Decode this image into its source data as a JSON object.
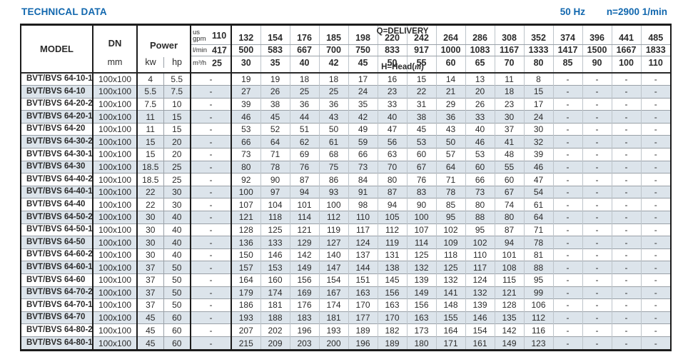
{
  "page": {
    "title": "TECHNICAL DATA",
    "frequency": "50 Hz",
    "speed": "n=2900 1/min"
  },
  "colors": {
    "accent": "#1167ae",
    "row_stripe": "#dce4eb"
  },
  "table": {
    "delivery_label": "Q=DELIVERY",
    "head_label": {
      "prefix": "H=Head(",
      "unit": "m",
      "suffix": ")"
    },
    "headers": {
      "model": "MODEL",
      "dn": "DN",
      "dn_unit": "mm",
      "power": "Power",
      "kw": "kw",
      "hp": "hp"
    },
    "unit_rows": [
      {
        "unit": "us gpm",
        "values": [
          "110",
          "132",
          "154",
          "176",
          "185",
          "198",
          "220",
          "242",
          "264",
          "286",
          "308",
          "352",
          "374",
          "396",
          "441",
          "485"
        ]
      },
      {
        "unit": "l/min",
        "values": [
          "417",
          "500",
          "583",
          "667",
          "700",
          "750",
          "833",
          "917",
          "1000",
          "1083",
          "1167",
          "1333",
          "1417",
          "1500",
          "1667",
          "1833"
        ]
      },
      {
        "unit": "m³/h",
        "values": [
          "25",
          "30",
          "35",
          "40",
          "42",
          "45",
          "50",
          "55",
          "60",
          "65",
          "70",
          "80",
          "85",
          "90",
          "100",
          "110"
        ]
      }
    ],
    "rows": [
      {
        "model": "BVT/BVS 64-10-1",
        "dn": "100x100",
        "kw": "4",
        "hp": "5.5",
        "head": [
          "-",
          "19",
          "19",
          "18",
          "18",
          "17",
          "16",
          "15",
          "14",
          "13",
          "11",
          "8",
          "-",
          "-",
          "-",
          "-"
        ]
      },
      {
        "model": "BVT/BVS 64-10",
        "dn": "100x100",
        "kw": "5.5",
        "hp": "7.5",
        "head": [
          "-",
          "27",
          "26",
          "25",
          "25",
          "24",
          "23",
          "22",
          "21",
          "20",
          "18",
          "15",
          "-",
          "-",
          "-",
          "-"
        ]
      },
      {
        "model": "BVT/BVS 64-20-2",
        "dn": "100x100",
        "kw": "7.5",
        "hp": "10",
        "head": [
          "-",
          "39",
          "38",
          "36",
          "36",
          "35",
          "33",
          "31",
          "29",
          "26",
          "23",
          "17",
          "-",
          "-",
          "-",
          "-"
        ]
      },
      {
        "model": "BVT/BVS 64-20-1",
        "dn": "100x100",
        "kw": "11",
        "hp": "15",
        "head": [
          "-",
          "46",
          "45",
          "44",
          "43",
          "42",
          "40",
          "38",
          "36",
          "33",
          "30",
          "24",
          "-",
          "-",
          "-",
          "-"
        ]
      },
      {
        "model": "BVT/BVS 64-20",
        "dn": "100x100",
        "kw": "11",
        "hp": "15",
        "head": [
          "-",
          "53",
          "52",
          "51",
          "50",
          "49",
          "47",
          "45",
          "43",
          "40",
          "37",
          "30",
          "-",
          "-",
          "-",
          "-"
        ]
      },
      {
        "model": "BVT/BVS 64-30-2",
        "dn": "100x100",
        "kw": "15",
        "hp": "20",
        "head": [
          "-",
          "66",
          "64",
          "62",
          "61",
          "59",
          "56",
          "53",
          "50",
          "46",
          "41",
          "32",
          "-",
          "-",
          "-",
          "-"
        ]
      },
      {
        "model": "BVT/BVS 64-30-1",
        "dn": "100x100",
        "kw": "15",
        "hp": "20",
        "head": [
          "-",
          "73",
          "71",
          "69",
          "68",
          "66",
          "63",
          "60",
          "57",
          "53",
          "48",
          "39",
          "-",
          "-",
          "-",
          "-"
        ]
      },
      {
        "model": "BVT/BVS 64-30",
        "dn": "100x100",
        "kw": "18.5",
        "hp": "25",
        "head": [
          "-",
          "80",
          "78",
          "76",
          "75",
          "73",
          "70",
          "67",
          "64",
          "60",
          "55",
          "46",
          "-",
          "-",
          "-",
          "-"
        ]
      },
      {
        "model": "BVT/BVS 64-40-2",
        "dn": "100x100",
        "kw": "18.5",
        "hp": "25",
        "head": [
          "-",
          "92",
          "90",
          "87",
          "86",
          "84",
          "80",
          "76",
          "71",
          "66",
          "60",
          "47",
          "-",
          "-",
          "-",
          "-"
        ]
      },
      {
        "model": "BVT/BVS 64-40-1",
        "dn": "100x100",
        "kw": "22",
        "hp": "30",
        "head": [
          "-",
          "100",
          "97",
          "94",
          "93",
          "91",
          "87",
          "83",
          "78",
          "73",
          "67",
          "54",
          "-",
          "-",
          "-",
          "-"
        ]
      },
      {
        "model": "BVT/BVS 64-40",
        "dn": "100x100",
        "kw": "22",
        "hp": "30",
        "head": [
          "-",
          "107",
          "104",
          "101",
          "100",
          "98",
          "94",
          "90",
          "85",
          "80",
          "74",
          "61",
          "-",
          "-",
          "-",
          "-"
        ]
      },
      {
        "model": "BVT/BVS 64-50-2",
        "dn": "100x100",
        "kw": "30",
        "hp": "40",
        "head": [
          "-",
          "121",
          "118",
          "114",
          "112",
          "110",
          "105",
          "100",
          "95",
          "88",
          "80",
          "64",
          "-",
          "-",
          "-",
          "-"
        ]
      },
      {
        "model": "BVT/BVS 64-50-1",
        "dn": "100x100",
        "kw": "30",
        "hp": "40",
        "head": [
          "-",
          "128",
          "125",
          "121",
          "119",
          "117",
          "112",
          "107",
          "102",
          "95",
          "87",
          "71",
          "-",
          "-",
          "-",
          "-"
        ]
      },
      {
        "model": "BVT/BVS 64-50",
        "dn": "100x100",
        "kw": "30",
        "hp": "40",
        "head": [
          "-",
          "136",
          "133",
          "129",
          "127",
          "124",
          "119",
          "114",
          "109",
          "102",
          "94",
          "78",
          "-",
          "-",
          "-",
          "-"
        ]
      },
      {
        "model": "BVT/BVS 64-60-2",
        "dn": "100x100",
        "kw": "30",
        "hp": "40",
        "head": [
          "-",
          "150",
          "146",
          "142",
          "140",
          "137",
          "131",
          "125",
          "118",
          "110",
          "101",
          "81",
          "-",
          "-",
          "-",
          "-"
        ]
      },
      {
        "model": "BVT/BVS 64-60-1",
        "dn": "100x100",
        "kw": "37",
        "hp": "50",
        "head": [
          "-",
          "157",
          "153",
          "149",
          "147",
          "144",
          "138",
          "132",
          "125",
          "117",
          "108",
          "88",
          "-",
          "-",
          "-",
          "-"
        ]
      },
      {
        "model": "BVT/BVS 64-60",
        "dn": "100x100",
        "kw": "37",
        "hp": "50",
        "head": [
          "-",
          "164",
          "160",
          "156",
          "154",
          "151",
          "145",
          "139",
          "132",
          "124",
          "115",
          "95",
          "-",
          "-",
          "-",
          "-"
        ]
      },
      {
        "model": "BVT/BVS 64-70-2",
        "dn": "100x100",
        "kw": "37",
        "hp": "50",
        "head": [
          "-",
          "179",
          "174",
          "169",
          "167",
          "163",
          "156",
          "149",
          "141",
          "132",
          "121",
          "99",
          "-",
          "-",
          "-",
          "-"
        ]
      },
      {
        "model": "BVT/BVS 64-70-1",
        "dn": "100x100",
        "kw": "37",
        "hp": "50",
        "head": [
          "-",
          "186",
          "181",
          "176",
          "174",
          "170",
          "163",
          "156",
          "148",
          "139",
          "128",
          "106",
          "-",
          "-",
          "-",
          "-"
        ]
      },
      {
        "model": "BVT/BVS 64-70",
        "dn": "100x100",
        "kw": "45",
        "hp": "60",
        "head": [
          "-",
          "193",
          "188",
          "183",
          "181",
          "177",
          "170",
          "163",
          "155",
          "146",
          "135",
          "112",
          "-",
          "-",
          "-",
          "-"
        ]
      },
      {
        "model": "BVT/BVS 64-80-2",
        "dn": "100x100",
        "kw": "45",
        "hp": "60",
        "head": [
          "-",
          "207",
          "202",
          "196",
          "193",
          "189",
          "182",
          "173",
          "164",
          "154",
          "142",
          "116",
          "-",
          "-",
          "-",
          "-"
        ]
      },
      {
        "model": "BVT/BVS 64-80-1",
        "dn": "100x100",
        "kw": "45",
        "hp": "60",
        "head": [
          "-",
          "215",
          "209",
          "203",
          "200",
          "196",
          "189",
          "180",
          "171",
          "161",
          "149",
          "123",
          "-",
          "-",
          "-",
          "-"
        ]
      }
    ]
  }
}
